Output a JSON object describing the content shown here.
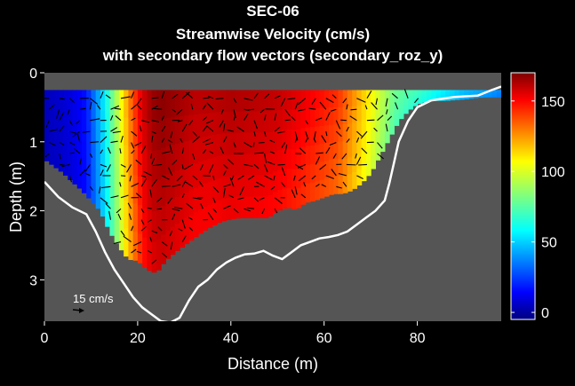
{
  "chart_data": {
    "type": "heatmap",
    "title": "SEC-06",
    "subtitle_line1": "Streamwise Velocity (cm/s)",
    "subtitle_line2": "with secondary flow vectors (secondary_roz_y)",
    "xlabel": "Distance (m)",
    "ylabel": "Depth (m)",
    "xlim": [
      0,
      98
    ],
    "ylim": [
      0,
      3.6
    ],
    "y_reversed": true,
    "xticks": [
      0,
      20,
      40,
      60,
      80
    ],
    "yticks": [
      0,
      1,
      2,
      3
    ],
    "colorbar": {
      "colormap": "jet",
      "clim": [
        -5,
        170
      ],
      "ticks": [
        0,
        50,
        100,
        150
      ]
    },
    "vector_scale_label": "15 cm/s",
    "background_color": "#555555",
    "bed_line_color": "#ffffff",
    "bed_profile": [
      [
        0,
        1.58
      ],
      [
        3,
        1.8
      ],
      [
        6,
        1.95
      ],
      [
        9,
        2.05
      ],
      [
        11,
        2.3
      ],
      [
        13,
        2.6
      ],
      [
        15,
        2.85
      ],
      [
        17,
        3.05
      ],
      [
        19,
        3.25
      ],
      [
        21,
        3.4
      ],
      [
        23,
        3.5
      ],
      [
        25,
        3.6
      ],
      [
        27,
        3.62
      ],
      [
        29,
        3.55
      ],
      [
        31,
        3.3
      ],
      [
        33,
        3.1
      ],
      [
        35,
        3.0
      ],
      [
        37,
        2.85
      ],
      [
        39,
        2.75
      ],
      [
        41,
        2.68
      ],
      [
        43,
        2.63
      ],
      [
        45,
        2.62
      ],
      [
        47,
        2.58
      ],
      [
        49,
        2.65
      ],
      [
        51,
        2.7
      ],
      [
        53,
        2.6
      ],
      [
        55,
        2.5
      ],
      [
        57,
        2.45
      ],
      [
        59,
        2.4
      ],
      [
        61,
        2.38
      ],
      [
        63,
        2.35
      ],
      [
        65,
        2.3
      ],
      [
        67,
        2.2
      ],
      [
        69,
        2.1
      ],
      [
        71,
        2.0
      ],
      [
        73,
        1.85
      ],
      [
        74,
        1.6
      ],
      [
        75,
        1.3
      ],
      [
        76,
        1.0
      ],
      [
        78,
        0.7
      ],
      [
        80,
        0.5
      ],
      [
        83,
        0.4
      ],
      [
        88,
        0.35
      ],
      [
        93,
        0.33
      ],
      [
        96,
        0.25
      ],
      [
        98,
        0.2
      ]
    ],
    "data_bottom_profile": [
      [
        0,
        1.25
      ],
      [
        2,
        1.35
      ],
      [
        4,
        1.45
      ],
      [
        6,
        1.58
      ],
      [
        8,
        1.7
      ],
      [
        10,
        1.85
      ],
      [
        12,
        2.0
      ],
      [
        14,
        2.3
      ],
      [
        16,
        2.52
      ],
      [
        18,
        2.7
      ],
      [
        20,
        2.72
      ],
      [
        22,
        2.85
      ],
      [
        24,
        2.9
      ],
      [
        26,
        2.72
      ],
      [
        28,
        2.6
      ],
      [
        30,
        2.5
      ],
      [
        32,
        2.4
      ],
      [
        34,
        2.3
      ],
      [
        36,
        2.22
      ],
      [
        38,
        2.15
      ],
      [
        40,
        2.12
      ],
      [
        42,
        2.1
      ],
      [
        44,
        2.1
      ],
      [
        46,
        2.1
      ],
      [
        48,
        2.1
      ],
      [
        50,
        2.0
      ],
      [
        52,
        1.95
      ],
      [
        54,
        1.98
      ],
      [
        56,
        1.88
      ],
      [
        58,
        1.85
      ],
      [
        60,
        1.8
      ],
      [
        62,
        1.75
      ],
      [
        64,
        1.75
      ],
      [
        66,
        1.7
      ],
      [
        68,
        1.6
      ],
      [
        70,
        1.45
      ],
      [
        72,
        1.2
      ],
      [
        74,
        0.95
      ],
      [
        76,
        0.7
      ],
      [
        78,
        0.55
      ],
      [
        80,
        0.45
      ],
      [
        83,
        0.4
      ],
      [
        86,
        0.4
      ],
      [
        90,
        0.38
      ],
      [
        94,
        0.35
      ],
      [
        98,
        0.35
      ]
    ],
    "data_top_depth": 0.25,
    "velocity_profile": [
      [
        0,
        5
      ],
      [
        3,
        8
      ],
      [
        6,
        12
      ],
      [
        9,
        20
      ],
      [
        11,
        40
      ],
      [
        13,
        60
      ],
      [
        15,
        85
      ],
      [
        17,
        110
      ],
      [
        19,
        135
      ],
      [
        21,
        155
      ],
      [
        23,
        165
      ],
      [
        25,
        168
      ],
      [
        28,
        165
      ],
      [
        32,
        160
      ],
      [
        36,
        160
      ],
      [
        40,
        162
      ],
      [
        45,
        160
      ],
      [
        50,
        158
      ],
      [
        55,
        152
      ],
      [
        60,
        145
      ],
      [
        63,
        140
      ],
      [
        66,
        125
      ],
      [
        69,
        110
      ],
      [
        72,
        95
      ],
      [
        75,
        80
      ],
      [
        78,
        75
      ],
      [
        81,
        70
      ],
      [
        85,
        60
      ],
      [
        90,
        50
      ],
      [
        95,
        45
      ],
      [
        98,
        40
      ]
    ]
  }
}
